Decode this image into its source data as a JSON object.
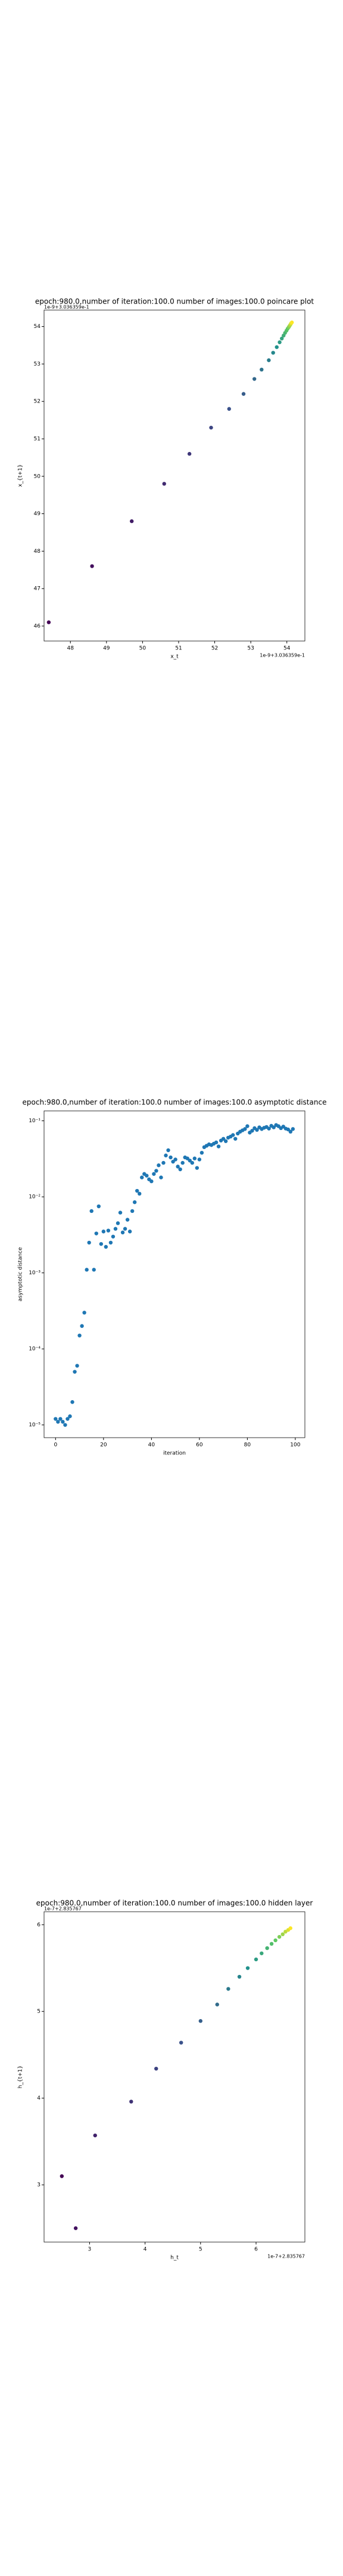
{
  "chart_data": [
    {
      "type": "scatter",
      "title": "epoch:980.0,number of iteration:100.0 number of images:100.0 poincare plot",
      "xlabel": "x_t",
      "ylabel": "x_{t+1}",
      "x_offset_text": "1e-9+3.036359e-1",
      "y_offset_text": "1e-9+3.036359e-1",
      "colormap": "viridis",
      "x": [
        47.4,
        48.6,
        49.7,
        50.6,
        51.3,
        51.9,
        52.4,
        52.8,
        53.1,
        53.3,
        53.5,
        53.62,
        53.72,
        53.8,
        53.86,
        53.91,
        53.95,
        53.99,
        54.02,
        54.05,
        54.07,
        54.09,
        54.11,
        54.12,
        54.14
      ],
      "values": [
        46.1,
        47.6,
        48.8,
        49.8,
        50.6,
        51.3,
        51.8,
        52.2,
        52.6,
        52.85,
        53.1,
        53.3,
        53.45,
        53.58,
        53.68,
        53.76,
        53.83,
        53.89,
        53.94,
        53.98,
        54.01,
        54.04,
        54.07,
        54.09,
        54.11
      ],
      "xlim": [
        47.27,
        54.5
      ],
      "ylim": [
        45.6,
        54.44
      ],
      "xticks": [
        48,
        49,
        50,
        51,
        52,
        53,
        54
      ],
      "yticks": [
        46,
        47,
        48,
        49,
        50,
        51,
        52,
        53,
        54
      ]
    },
    {
      "type": "scatter",
      "title": "epoch:980.0,number of iteration:100.0  number of images:100.0 asymptotic distance",
      "xlabel": "iteration",
      "ylabel": "asymptotic distance",
      "color": "#1f77b4",
      "log_y": true,
      "x": [
        0,
        1,
        2,
        3,
        4,
        5,
        6,
        7,
        8,
        9,
        10,
        11,
        12,
        13,
        14,
        15,
        16,
        17,
        18,
        19,
        20,
        21,
        22,
        23,
        24,
        25,
        26,
        27,
        28,
        29,
        30,
        31,
        32,
        33,
        34,
        35,
        36,
        37,
        38,
        39,
        40,
        41,
        42,
        43,
        44,
        45,
        46,
        47,
        48,
        49,
        50,
        51,
        52,
        53,
        54,
        55,
        56,
        57,
        58,
        59,
        60,
        61,
        62,
        63,
        64,
        65,
        66,
        67,
        68,
        69,
        70,
        71,
        72,
        73,
        74,
        75,
        76,
        77,
        78,
        79,
        80,
        81,
        82,
        83,
        84,
        85,
        86,
        87,
        88,
        89,
        90,
        91,
        92,
        93,
        94,
        95,
        96,
        97,
        98,
        99
      ],
      "values": [
        1.2e-05,
        1.1e-05,
        1.2e-05,
        1.1e-05,
        1e-05,
        1.2e-05,
        1.3e-05,
        2e-05,
        5e-05,
        6e-05,
        0.00015,
        0.0002,
        0.0003,
        0.0011,
        0.0025,
        0.0065,
        0.0011,
        0.0033,
        0.0075,
        0.0024,
        0.0035,
        0.0022,
        0.0036,
        0.0025,
        0.003,
        0.0038,
        0.0045,
        0.0062,
        0.0034,
        0.0038,
        0.005,
        0.0035,
        0.0065,
        0.0085,
        0.012,
        0.011,
        0.018,
        0.02,
        0.019,
        0.017,
        0.016,
        0.02,
        0.022,
        0.026,
        0.018,
        0.028,
        0.035,
        0.041,
        0.033,
        0.029,
        0.031,
        0.025,
        0.023,
        0.028,
        0.033,
        0.032,
        0.03,
        0.028,
        0.032,
        0.024,
        0.031,
        0.038,
        0.045,
        0.047,
        0.049,
        0.048,
        0.05,
        0.052,
        0.046,
        0.055,
        0.058,
        0.054,
        0.06,
        0.062,
        0.065,
        0.058,
        0.068,
        0.072,
        0.075,
        0.078,
        0.085,
        0.07,
        0.074,
        0.08,
        0.076,
        0.082,
        0.078,
        0.081,
        0.083,
        0.079,
        0.086,
        0.082,
        0.088,
        0.085,
        0.08,
        0.084,
        0.079,
        0.077,
        0.072,
        0.078
      ],
      "xlim": [
        -4.8,
        104
      ],
      "ylim": [
        6.8e-06,
        0.135
      ],
      "xticks": [
        0,
        20,
        40,
        60,
        80,
        100
      ],
      "yticks": [
        {
          "value": 1e-05,
          "label": "10⁻⁵"
        },
        {
          "value": 0.0001,
          "label": "10⁻⁴"
        },
        {
          "value": 0.001,
          "label": "10⁻³"
        },
        {
          "value": 0.01,
          "label": "10⁻²"
        },
        {
          "value": 0.1,
          "label": "10⁻¹"
        }
      ]
    },
    {
      "type": "scatter",
      "title": "epoch:980.0,number of iteration:100.0  number of images:100.0 hidden layer",
      "xlabel": "h_t",
      "ylabel": "h_{t+1}",
      "x_offset_text": "1e-7+2.835767",
      "y_offset_text": "1e-7+2.835767",
      "colormap": "viridis",
      "x": [
        2.5,
        2.75,
        3.1,
        3.75,
        4.2,
        4.65,
        5.0,
        5.3,
        5.5,
        5.7,
        5.85,
        6.0,
        6.1,
        6.2,
        6.28,
        6.35,
        6.42,
        6.48,
        6.53,
        6.58,
        6.62
      ],
      "values": [
        3.1,
        2.5,
        3.57,
        3.96,
        4.34,
        4.64,
        4.89,
        5.08,
        5.26,
        5.4,
        5.5,
        5.6,
        5.67,
        5.73,
        5.78,
        5.82,
        5.86,
        5.89,
        5.92,
        5.94,
        5.96
      ],
      "xlim": [
        2.18,
        6.88
      ],
      "ylim": [
        2.34,
        6.15
      ],
      "xticks": [
        3,
        4,
        5,
        6
      ],
      "yticks": [
        3,
        4,
        5,
        6
      ]
    }
  ]
}
